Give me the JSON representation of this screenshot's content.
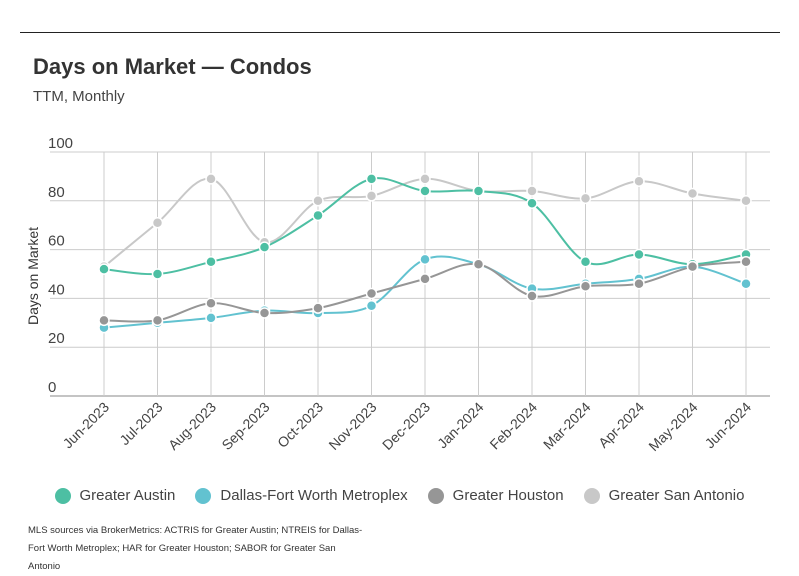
{
  "header": {
    "title": "Days on Market — Condos",
    "subtitle": "TTM, Monthly"
  },
  "footnote": "MLS sources via BrokerMetrics: ACTRIS for Greater Austin; NTREIS for Dallas-Fort Worth Metroplex; HAR for Greater Houston; SABOR for Greater San Antonio",
  "chart_data": {
    "type": "line",
    "title": "Days on Market — Condos",
    "subtitle": "TTM, Monthly",
    "xlabel": "",
    "ylabel": "Days on Market",
    "ylim": [
      0,
      100
    ],
    "yticks": [
      0,
      20,
      40,
      60,
      80,
      100
    ],
    "grid": true,
    "legend_position": "bottom",
    "categories": [
      "Jun-2023",
      "Jul-2023",
      "Aug-2023",
      "Sep-2023",
      "Oct-2023",
      "Nov-2023",
      "Dec-2023",
      "Jan-2024",
      "Feb-2024",
      "Mar-2024",
      "Apr-2024",
      "May-2024",
      "Jun-2024"
    ],
    "series": [
      {
        "name": "Greater Austin",
        "color": "#4dbfa3",
        "values": [
          52,
          50,
          55,
          61,
          74,
          89,
          84,
          84,
          79,
          55,
          58,
          54,
          58
        ]
      },
      {
        "name": "Dallas-Fort Worth Metroplex",
        "color": "#62c2d0",
        "values": [
          28,
          30,
          32,
          35,
          34,
          37,
          56,
          54,
          44,
          46,
          48,
          53,
          46
        ]
      },
      {
        "name": "Greater Houston",
        "color": "#969696",
        "values": [
          31,
          31,
          38,
          34,
          36,
          42,
          48,
          54,
          41,
          45,
          46,
          53,
          55
        ]
      },
      {
        "name": "Greater San Antonio",
        "color": "#c8c8c8",
        "values": [
          53,
          71,
          89,
          63,
          80,
          82,
          89,
          84,
          84,
          81,
          88,
          83,
          80
        ]
      }
    ]
  }
}
